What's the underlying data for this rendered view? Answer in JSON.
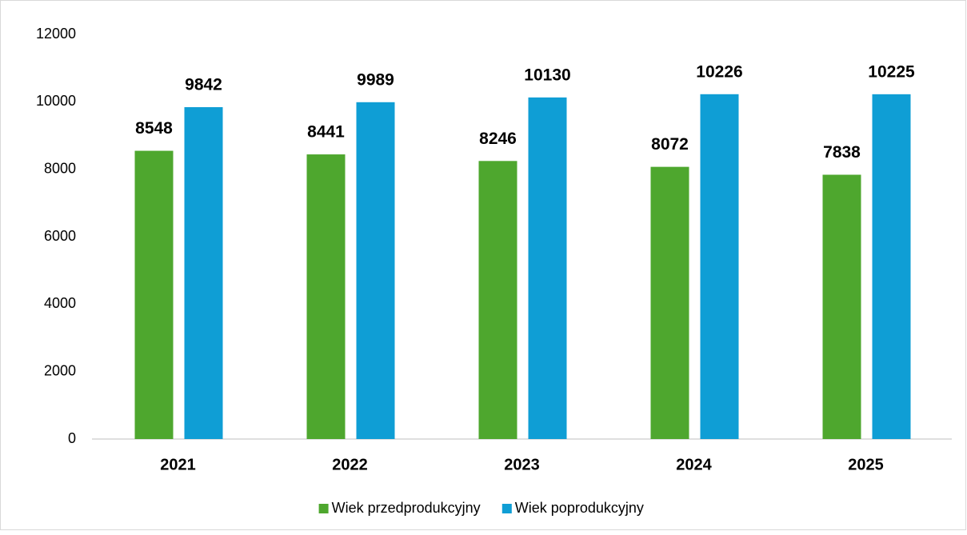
{
  "chart_data": {
    "type": "bar",
    "categories": [
      "2021",
      "2022",
      "2023",
      "2024",
      "2025"
    ],
    "series": [
      {
        "name": "Wiek przedprodukcyjny",
        "color": "#4ea72e",
        "values": [
          8548,
          8441,
          8246,
          8072,
          7838
        ]
      },
      {
        "name": "Wiek poprodukcyjny",
        "color": "#0f9ed5",
        "values": [
          9842,
          9989,
          10130,
          10226,
          10225
        ]
      }
    ],
    "ylim": [
      0,
      12000
    ],
    "yticks": [
      0,
      2000,
      4000,
      6000,
      8000,
      10000,
      12000
    ],
    "grid": false,
    "legend": "bottom"
  }
}
